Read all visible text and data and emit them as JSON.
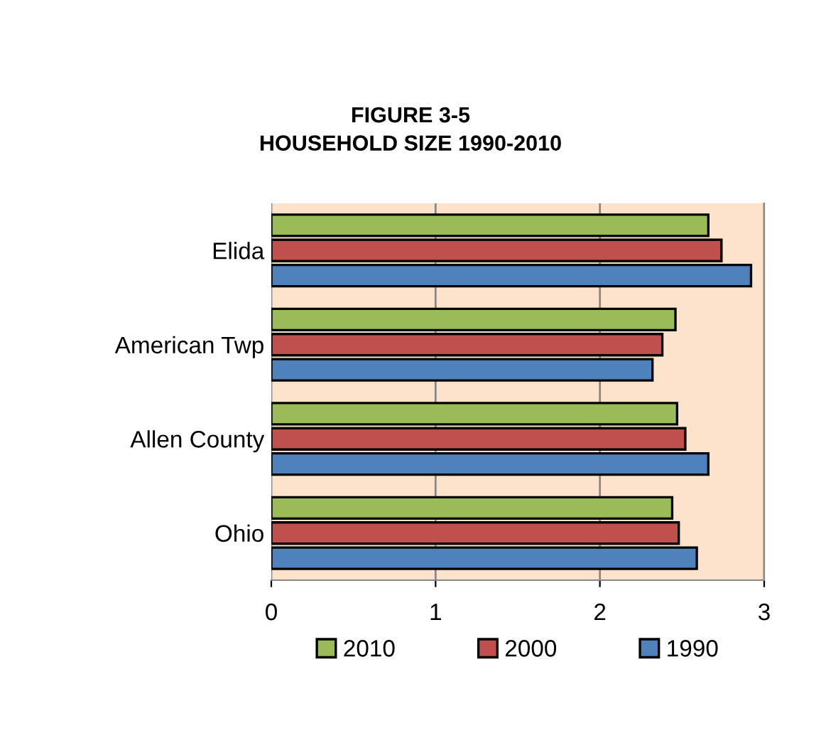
{
  "chart_data": {
    "type": "bar",
    "orientation": "horizontal",
    "title": "FIGURE 3-5\nHOUSEHOLD SIZE 1990-2010",
    "categories": [
      "Elida",
      "American Twp",
      "Allen County",
      "Ohio"
    ],
    "series": [
      {
        "name": "2010",
        "color": "#9bbb59",
        "values": [
          2.66,
          2.46,
          2.47,
          2.44
        ]
      },
      {
        "name": "2000",
        "color": "#c0504d",
        "values": [
          2.74,
          2.38,
          2.52,
          2.48
        ]
      },
      {
        "name": "1990",
        "color": "#4f81bd",
        "values": [
          2.92,
          2.32,
          2.66,
          2.59
        ]
      }
    ],
    "xlim": [
      0,
      3
    ],
    "xticks": [
      0,
      1,
      2,
      3
    ],
    "grid": "x",
    "legend": "bottom"
  }
}
